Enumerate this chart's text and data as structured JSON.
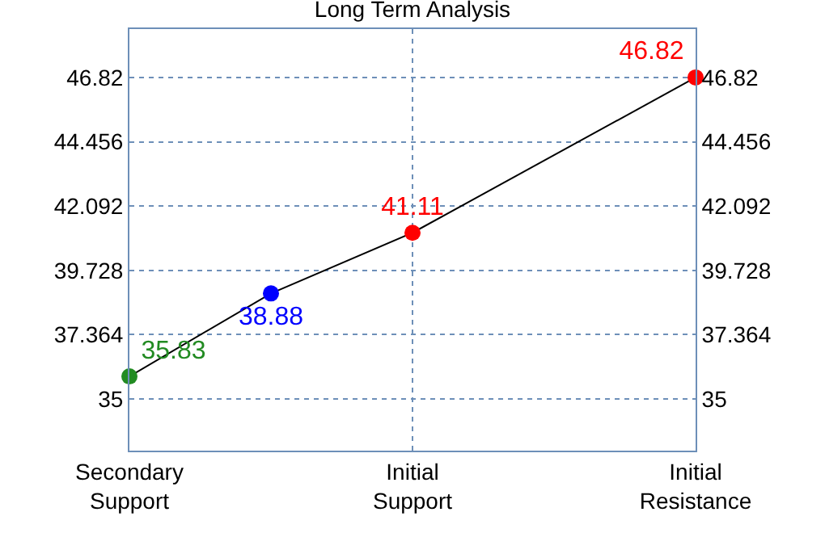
{
  "chart_data": {
    "type": "line",
    "title": "Long Term Analysis",
    "categories": [
      "Secondary\nSupport",
      null,
      "Initial\nSupport",
      null,
      "Initial\nResistance"
    ],
    "series": [
      {
        "color": "#000000",
        "colors": [
          "#228b22",
          "#0000ff",
          "#ff0000",
          "#ff0000",
          "#ff0000"
        ],
        "values": [
          35.83,
          38.88,
          41.11,
          null,
          46.82
        ]
      }
    ],
    "marker": "circle",
    "data_labels": true,
    "ylim": [
      33.1,
      48.6
    ],
    "yticks": [
      35,
      37.364,
      39.728,
      42.092,
      44.456,
      46.82
    ],
    "y2lim": [
      33.1,
      48.6
    ],
    "y2ticks": [
      35,
      37.364,
      39.728,
      42.092,
      44.456,
      46.82
    ],
    "grid": true
  }
}
